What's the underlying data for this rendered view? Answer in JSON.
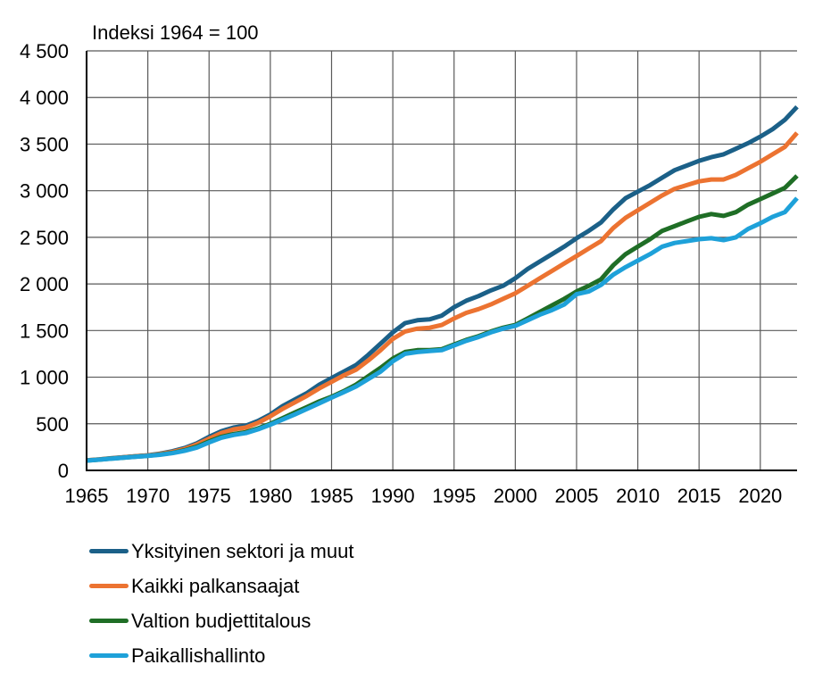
{
  "chart_data": {
    "type": "line",
    "title": "",
    "subtitle": "Indeksi 1964 = 100",
    "xlabel": "",
    "ylabel": "",
    "xlim": [
      1965,
      2023
    ],
    "ylim": [
      0,
      4500
    ],
    "grid": true,
    "legend_position": "bottom",
    "x_ticks": [
      1965,
      1970,
      1975,
      1980,
      1985,
      1990,
      1995,
      2000,
      2005,
      2010,
      2015,
      2020
    ],
    "x_tick_labels": [
      "1965",
      "1970",
      "1975",
      "1980",
      "1985",
      "1990",
      "1995",
      "2000",
      "2005",
      "2010",
      "2015",
      "2020"
    ],
    "y_ticks": [
      0,
      500,
      1000,
      1500,
      2000,
      2500,
      3000,
      3500,
      4000,
      4500
    ],
    "y_tick_labels": [
      "0",
      "500",
      "1 000",
      "1 500",
      "2 000",
      "2 500",
      "3 000",
      "3 500",
      "4 000",
      "4 500"
    ],
    "x": [
      1965,
      1966,
      1967,
      1968,
      1969,
      1970,
      1971,
      1972,
      1973,
      1974,
      1975,
      1976,
      1977,
      1978,
      1979,
      1980,
      1981,
      1982,
      1983,
      1984,
      1985,
      1986,
      1987,
      1988,
      1989,
      1990,
      1991,
      1992,
      1993,
      1994,
      1995,
      1996,
      1997,
      1998,
      1999,
      2000,
      2001,
      2002,
      2003,
      2004,
      2005,
      2006,
      2007,
      2008,
      2009,
      2010,
      2011,
      2012,
      2013,
      2014,
      2015,
      2016,
      2017,
      2018,
      2019,
      2020,
      2021,
      2022,
      2023
    ],
    "series": [
      {
        "name": "Yksityinen sektori ja muut",
        "color": "#1b6088",
        "values": [
          108,
          118,
          130,
          142,
          152,
          162,
          180,
          205,
          240,
          290,
          360,
          420,
          460,
          480,
          530,
          600,
          690,
          760,
          830,
          920,
          990,
          1060,
          1130,
          1240,
          1360,
          1480,
          1580,
          1610,
          1620,
          1660,
          1750,
          1820,
          1870,
          1930,
          1980,
          2060,
          2160,
          2240,
          2320,
          2400,
          2490,
          2570,
          2660,
          2800,
          2920,
          2990,
          3060,
          3140,
          3220,
          3270,
          3320,
          3360,
          3390,
          3450,
          3510,
          3580,
          3660,
          3760,
          3900
        ]
      },
      {
        "name": "Kaikki palkansaajat",
        "color": "#ec7331",
        "values": [
          107,
          117,
          128,
          140,
          150,
          160,
          176,
          198,
          230,
          278,
          340,
          400,
          440,
          460,
          510,
          580,
          660,
          730,
          800,
          880,
          950,
          1020,
          1080,
          1180,
          1290,
          1410,
          1490,
          1520,
          1530,
          1560,
          1630,
          1690,
          1730,
          1780,
          1840,
          1900,
          1980,
          2060,
          2140,
          2220,
          2300,
          2380,
          2460,
          2600,
          2710,
          2790,
          2870,
          2950,
          3020,
          3060,
          3100,
          3120,
          3120,
          3170,
          3240,
          3310,
          3390,
          3470,
          3620
        ]
      },
      {
        "name": "Valtion budjettitalous",
        "color": "#1f6e26",
        "values": [
          105,
          115,
          126,
          137,
          147,
          156,
          170,
          188,
          215,
          255,
          310,
          360,
          390,
          410,
          450,
          500,
          560,
          620,
          680,
          740,
          790,
          850,
          920,
          1010,
          1100,
          1200,
          1270,
          1290,
          1290,
          1300,
          1350,
          1400,
          1440,
          1490,
          1530,
          1560,
          1630,
          1700,
          1770,
          1840,
          1920,
          1980,
          2050,
          2200,
          2320,
          2400,
          2480,
          2570,
          2620,
          2670,
          2720,
          2750,
          2730,
          2770,
          2850,
          2910,
          2970,
          3030,
          3160
        ]
      },
      {
        "name": "Paikallishallinto",
        "color": "#1ea1d9",
        "values": [
          105,
          115,
          125,
          136,
          146,
          155,
          168,
          185,
          210,
          245,
          300,
          350,
          380,
          400,
          440,
          490,
          545,
          600,
          660,
          720,
          780,
          840,
          900,
          980,
          1060,
          1170,
          1250,
          1270,
          1280,
          1290,
          1340,
          1390,
          1430,
          1480,
          1520,
          1550,
          1610,
          1670,
          1720,
          1780,
          1890,
          1920,
          1990,
          2100,
          2180,
          2250,
          2320,
          2400,
          2440,
          2460,
          2480,
          2490,
          2470,
          2500,
          2590,
          2650,
          2720,
          2770,
          2920
        ]
      }
    ]
  }
}
